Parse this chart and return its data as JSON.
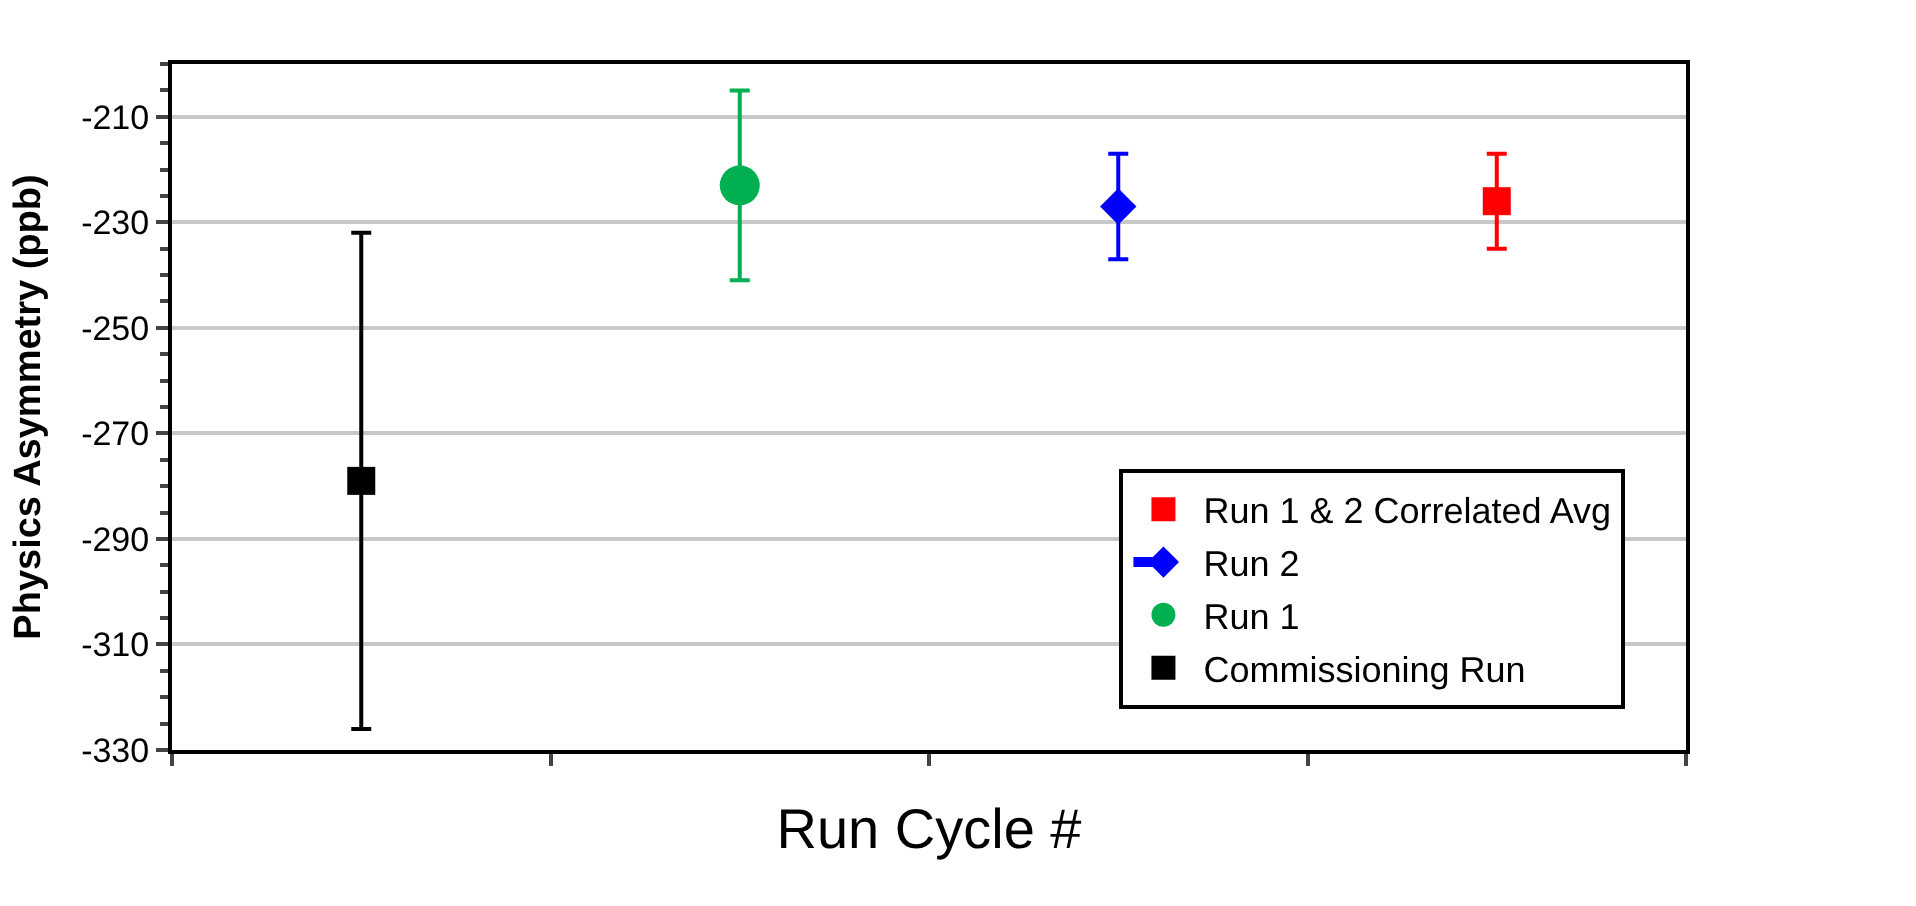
{
  "chart_data": {
    "type": "scatter",
    "xlabel": "Run Cycle #",
    "ylabel": "Physics Asymmetry (ppb)",
    "categories": [
      null,
      null,
      null,
      null
    ],
    "series": [
      {
        "name": "Commissioning Run",
        "color": "#000000",
        "marker": "square",
        "values": [
          -279,
          null,
          null,
          null
        ],
        "errors": [
          47,
          null,
          null,
          null
        ]
      },
      {
        "name": "Run 1",
        "color": "#00b050",
        "marker": "circle",
        "values": [
          null,
          -223,
          null,
          null
        ],
        "errors": [
          null,
          18,
          null,
          null
        ]
      },
      {
        "name": "Run 2",
        "color": "#0000ff",
        "marker": "diamond",
        "line_style": "dashed",
        "values": [
          null,
          null,
          -227,
          null
        ],
        "errors": [
          null,
          null,
          10,
          null
        ]
      },
      {
        "name": "Run 1 & 2 Correlated Avg",
        "color": "#ff0000",
        "marker": "square",
        "values": [
          null,
          null,
          null,
          -226
        ],
        "errors": [
          null,
          null,
          null,
          9
        ]
      }
    ],
    "ylim": [
      -330,
      -200
    ],
    "yticks": [
      -210,
      -230,
      -250,
      -270,
      -290,
      -310,
      -330
    ],
    "grid": "y",
    "legend": "bottom right"
  }
}
